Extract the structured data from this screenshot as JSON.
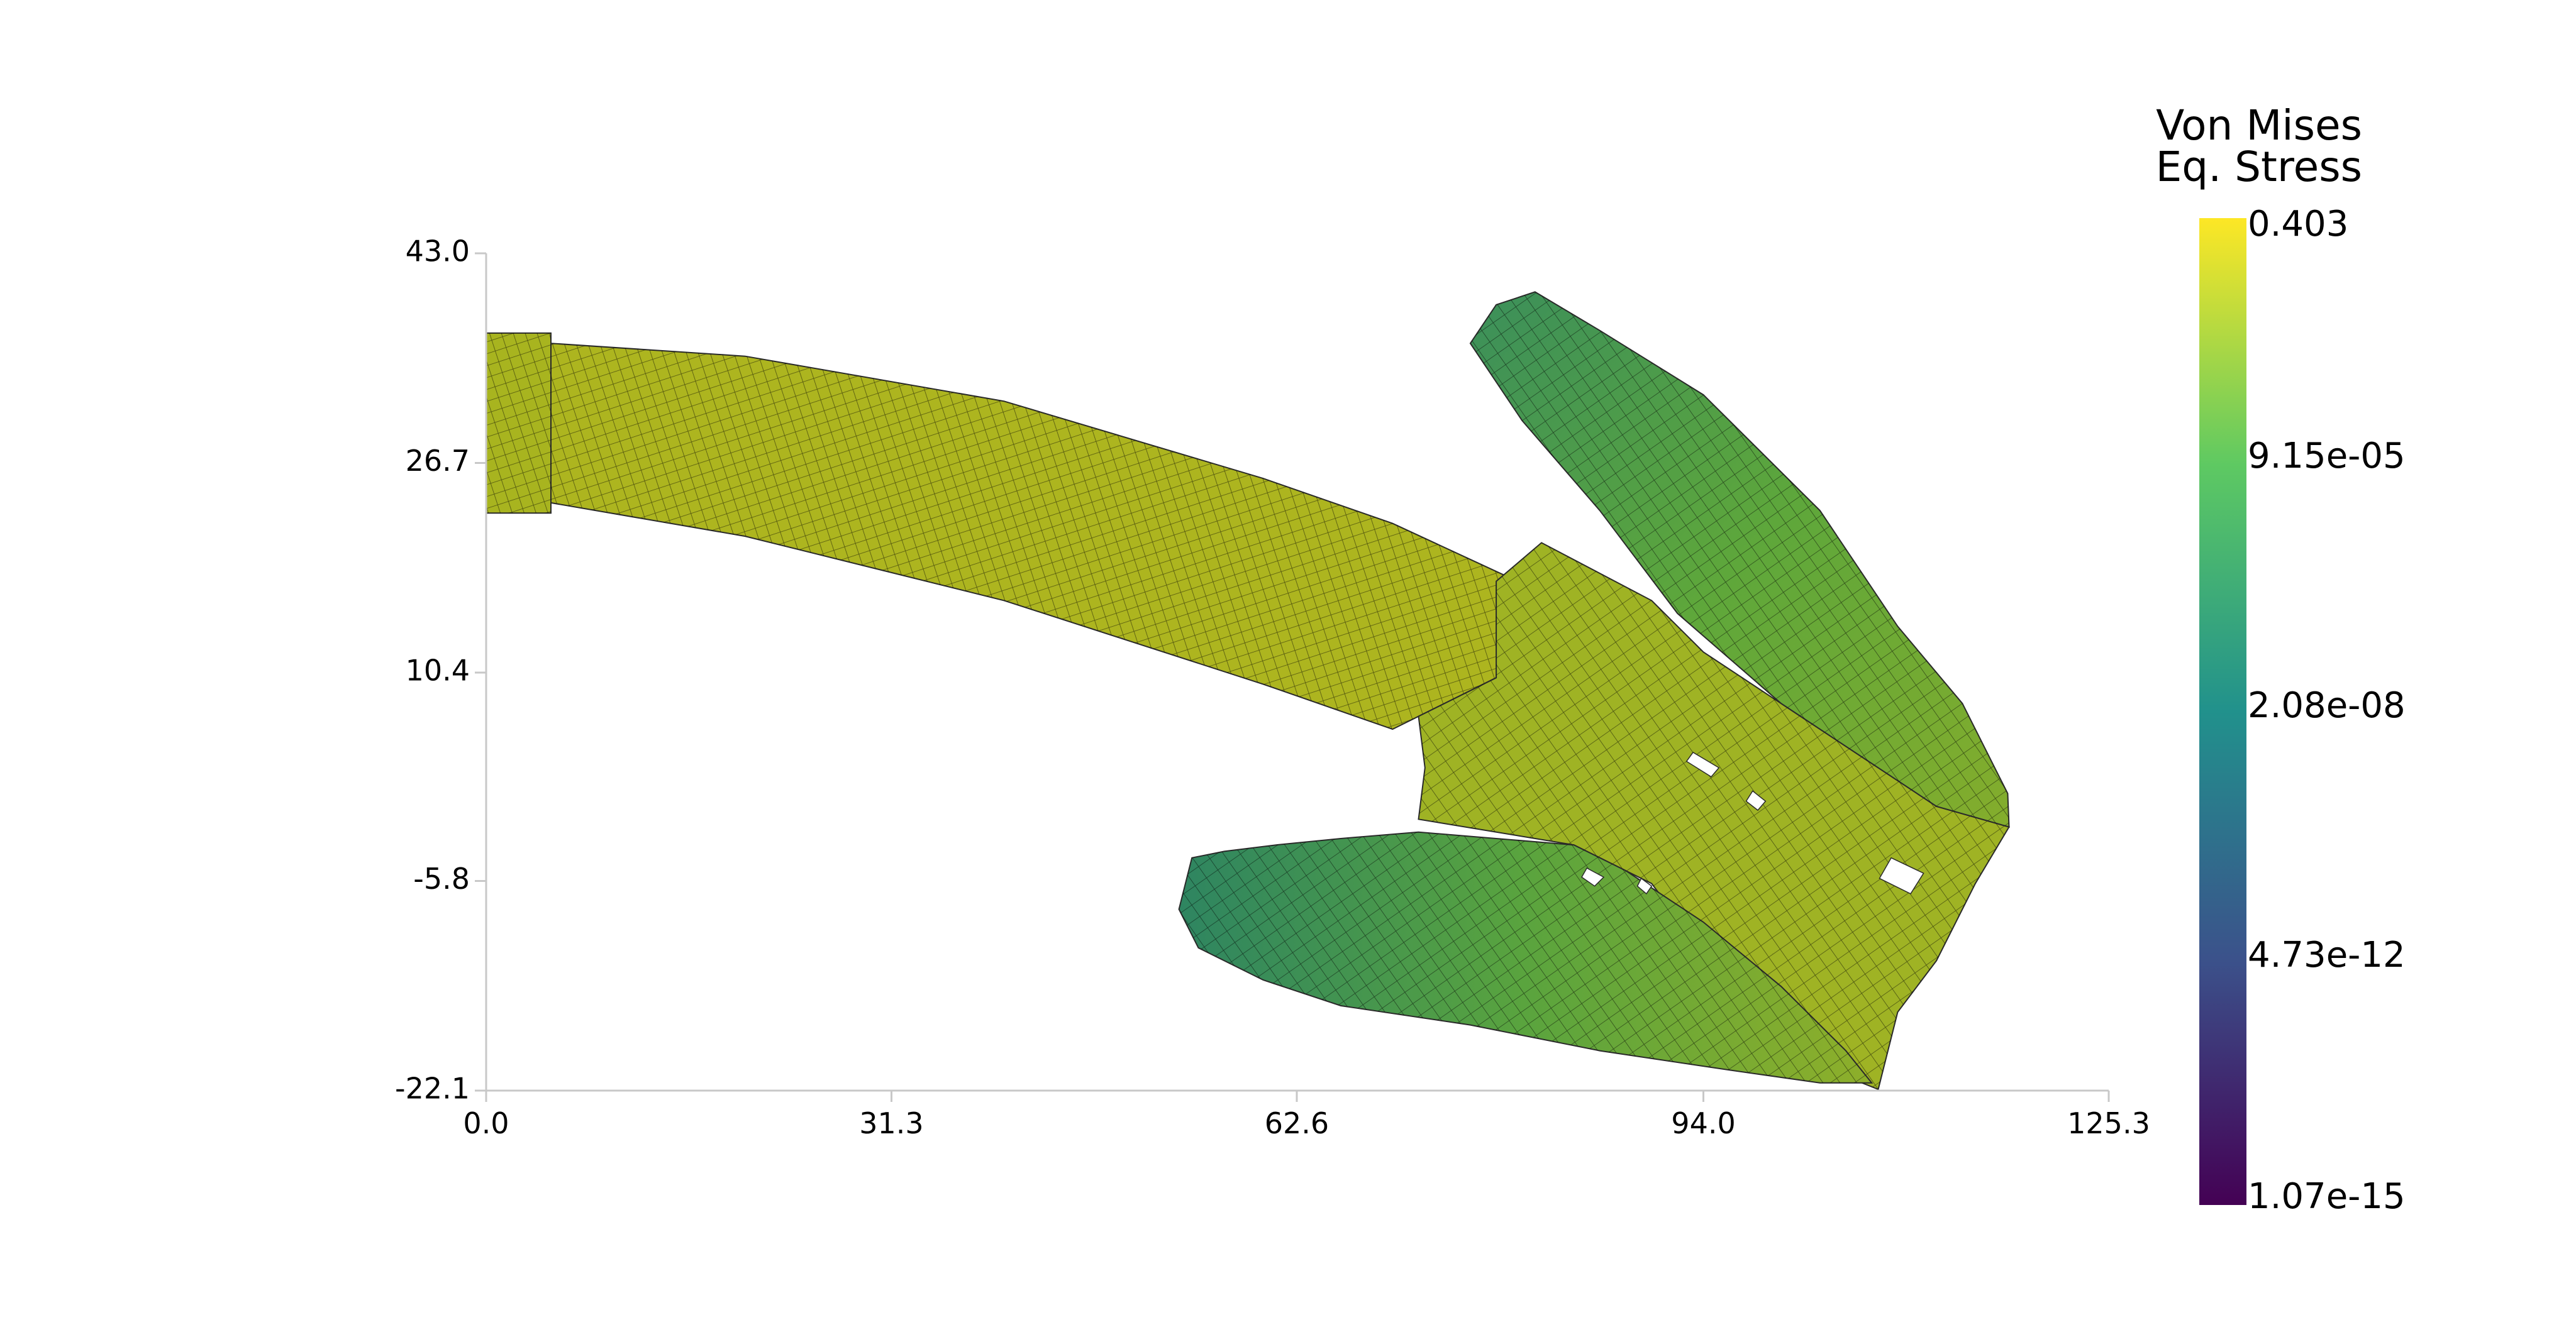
{
  "chart_data": {
    "type": "heatmap",
    "description_units": "mesh plot, coordinates in data units",
    "x_ticks": [
      "0.0",
      "31.3",
      "62.6",
      "94.0",
      "125.3"
    ],
    "y_ticks": [
      "43.0",
      "26.7",
      "10.4",
      "-5.8",
      "-22.1"
    ],
    "xlim": [
      0.0,
      125.3
    ],
    "ylim": [
      -22.1,
      43.0
    ],
    "grid": false,
    "legend": {
      "title_line1": "Von Mises",
      "title_line2": "Eq. Stress",
      "placement": "right",
      "scale": "log",
      "labels": [
        "0.403",
        "9.15e-05",
        "2.08e-08",
        "4.73e-12",
        "1.07e-15"
      ],
      "colormap": [
        "#440154",
        "#3b528b",
        "#21918c",
        "#5ec962",
        "#fde725"
      ]
    },
    "regions": [
      {
        "name": "clamp",
        "color": "#a8b41f",
        "polygon": [
          [
            0.0,
            36.8
          ],
          [
            5.0,
            36.8
          ],
          [
            5.0,
            22.8
          ],
          [
            0.0,
            22.8
          ]
        ]
      },
      {
        "name": "beam",
        "color": "#adb51f",
        "polygon": [
          [
            5.0,
            36.0
          ],
          [
            20.0,
            35.0
          ],
          [
            40.0,
            31.5
          ],
          [
            60.0,
            25.5
          ],
          [
            70.0,
            22.0
          ],
          [
            79.0,
            17.8
          ],
          [
            78.0,
            10.0
          ],
          [
            70.0,
            6.0
          ],
          [
            60.0,
            9.5
          ],
          [
            40.0,
            16.0
          ],
          [
            20.0,
            21.0
          ],
          [
            5.0,
            23.6
          ]
        ]
      },
      {
        "name": "head",
        "color": "#9fb324",
        "polygon": [
          [
            78.0,
            17.5
          ],
          [
            81.5,
            20.5
          ],
          [
            90.0,
            16.0
          ],
          [
            94.0,
            12.0
          ],
          [
            112.0,
            0.0
          ],
          [
            117.6,
            -1.6
          ],
          [
            115.0,
            -6.0
          ],
          [
            112.0,
            -12.0
          ],
          [
            109.0,
            -16.0
          ],
          [
            107.5,
            -22.0
          ],
          [
            105.0,
            -21.0
          ],
          [
            96.0,
            -14.0
          ],
          [
            90.0,
            -6.0
          ],
          [
            87.0,
            -4.5
          ],
          [
            84.0,
            -3.0
          ],
          [
            72.0,
            -1.0
          ],
          [
            72.5,
            3.0
          ],
          [
            72.0,
            7.0
          ],
          [
            78.0,
            10.0
          ]
        ]
      },
      {
        "name": "upper-finger",
        "color": "#5ba53d",
        "gradient": [
          "#3b8f5b",
          "#5ea73b",
          "#84ad2c"
        ],
        "polygon": [
          [
            81.0,
            40.0
          ],
          [
            86.0,
            37.0
          ],
          [
            94.0,
            32.0
          ],
          [
            103.0,
            23.0
          ],
          [
            109.0,
            14.0
          ],
          [
            114.0,
            8.0
          ],
          [
            117.5,
            1.0
          ],
          [
            117.6,
            -1.6
          ],
          [
            112.0,
            0.0
          ],
          [
            100.0,
            8.0
          ],
          [
            92.0,
            15.0
          ],
          [
            86.0,
            23.0
          ],
          [
            80.0,
            30.0
          ],
          [
            76.0,
            36.0
          ],
          [
            78.0,
            39.0
          ]
        ]
      },
      {
        "name": "lower-finger",
        "color": "#6aa939",
        "gradient": [
          "#2e8561",
          "#5aa43e",
          "#8eaf2a"
        ],
        "polygon": [
          [
            54.5,
            -4.0
          ],
          [
            57.0,
            -3.5
          ],
          [
            61.0,
            -3.0
          ],
          [
            66.0,
            -2.5
          ],
          [
            72.0,
            -2.0
          ],
          [
            78.0,
            -2.5
          ],
          [
            84.0,
            -3.0
          ],
          [
            88.0,
            -5.0
          ],
          [
            94.0,
            -9.0
          ],
          [
            100.0,
            -14.0
          ],
          [
            105.0,
            -19.0
          ],
          [
            107.0,
            -21.5
          ],
          [
            103.0,
            -21.5
          ],
          [
            96.0,
            -20.5
          ],
          [
            86.0,
            -19.0
          ],
          [
            76.0,
            -17.0
          ],
          [
            66.0,
            -15.5
          ],
          [
            60.0,
            -13.5
          ],
          [
            55.0,
            -11.0
          ],
          [
            53.5,
            -8.0
          ]
        ]
      }
    ],
    "holes": [
      [
        [
          93.2,
          4.2
        ],
        [
          95.2,
          3.0
        ],
        [
          94.6,
          2.3
        ],
        [
          92.7,
          3.5
        ]
      ],
      [
        [
          97.8,
          1.2
        ],
        [
          98.8,
          0.4
        ],
        [
          98.2,
          -0.3
        ],
        [
          97.3,
          0.4
        ]
      ],
      [
        [
          85.0,
          -4.8
        ],
        [
          86.3,
          -5.5
        ],
        [
          85.6,
          -6.2
        ],
        [
          84.6,
          -5.5
        ]
      ],
      [
        [
          89.2,
          -5.6
        ],
        [
          90.0,
          -6.2
        ],
        [
          89.6,
          -6.8
        ],
        [
          88.9,
          -6.2
        ]
      ],
      [
        [
          108.5,
          -4.0
        ],
        [
          111.0,
          -5.2
        ],
        [
          110.0,
          -6.8
        ],
        [
          107.6,
          -5.6
        ]
      ]
    ]
  }
}
